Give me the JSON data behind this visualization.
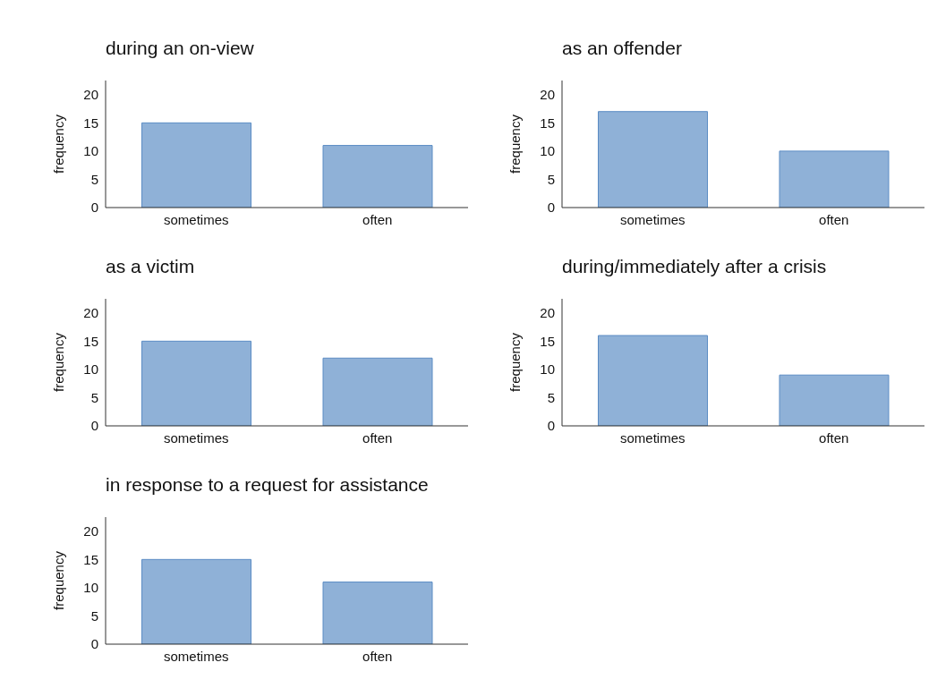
{
  "chart_data": [
    {
      "type": "bar",
      "title": "during an on-view",
      "ylabel": "frequency",
      "categories": [
        "sometimes",
        "often"
      ],
      "values": [
        15,
        11
      ],
      "color": "#8fb1d7",
      "ylim": [
        0,
        22.5
      ],
      "yticks": [
        0,
        5,
        10,
        15,
        20
      ],
      "grid": false
    },
    {
      "type": "bar",
      "title": "as an offender",
      "ylabel": "frequency",
      "categories": [
        "sometimes",
        "often"
      ],
      "values": [
        17,
        10
      ],
      "color": "#8fb1d7",
      "ylim": [
        0,
        22.5
      ],
      "yticks": [
        0,
        5,
        10,
        15,
        20
      ],
      "grid": false
    },
    {
      "type": "bar",
      "title": "as a victim",
      "ylabel": "frequency",
      "categories": [
        "sometimes",
        "often"
      ],
      "values": [
        15,
        12
      ],
      "color": "#8fb1d7",
      "ylim": [
        0,
        22.5
      ],
      "yticks": [
        0,
        5,
        10,
        15,
        20
      ],
      "grid": false
    },
    {
      "type": "bar",
      "title": "during/immediately after a crisis",
      "ylabel": "frequency",
      "categories": [
        "sometimes",
        "often"
      ],
      "values": [
        16,
        9
      ],
      "color": "#8fb1d7",
      "ylim": [
        0,
        22.5
      ],
      "yticks": [
        0,
        5,
        10,
        15,
        20
      ],
      "grid": false
    },
    {
      "type": "bar",
      "title": "in response to a request for assistance",
      "ylabel": "frequency",
      "categories": [
        "sometimes",
        "often"
      ],
      "values": [
        15,
        11
      ],
      "color": "#8fb1d7",
      "ylim": [
        0,
        22.5
      ],
      "yticks": [
        0,
        5,
        10,
        15,
        20
      ],
      "grid": false
    }
  ]
}
